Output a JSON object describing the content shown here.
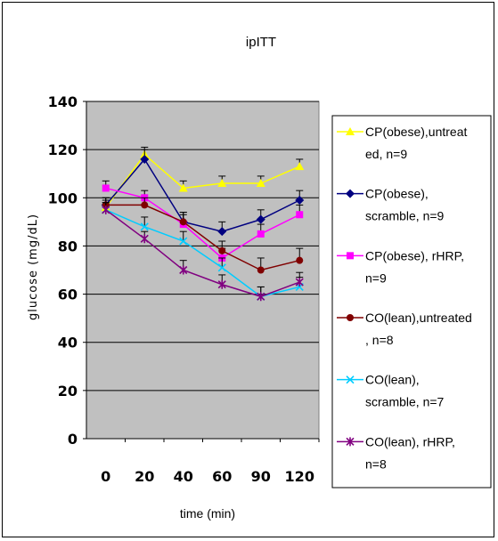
{
  "chart_data": {
    "type": "line",
    "title": "ipITT",
    "xlabel": "time (min)",
    "ylabel": "glucose (mg/dL)",
    "categories": [
      "0",
      "20",
      "40",
      "60",
      "90",
      "120"
    ],
    "ylim": [
      0,
      140
    ],
    "yticks": [
      0,
      20,
      40,
      60,
      80,
      100,
      120,
      140
    ],
    "grid": true,
    "legend_position": "right",
    "plot_background": "#c0c0c0",
    "series": [
      {
        "name": "CP(obese),untreated, n=9",
        "legend_lines": [
          "CP(obese),untreat",
          "ed, n=9"
        ],
        "values": [
          96,
          118,
          104,
          106,
          106,
          113
        ],
        "errors": [
          3,
          3,
          3,
          3,
          3,
          3
        ],
        "color": "#ffff00",
        "marker": "triangle"
      },
      {
        "name": "CP(obese), scramble, n=9",
        "legend_lines": [
          "CP(obese),",
          "scramble, n=9"
        ],
        "values": [
          97,
          116,
          90,
          86,
          91,
          99
        ],
        "errors": [
          3,
          4,
          4,
          4,
          4,
          4
        ],
        "color": "#000080",
        "marker": "diamond"
      },
      {
        "name": "CP(obese), rHRP, n=9",
        "legend_lines": [
          "CP(obese), rHRP,",
          "n=9"
        ],
        "values": [
          104,
          100,
          89,
          75,
          85,
          93
        ],
        "errors": [
          3,
          3,
          4,
          4,
          4,
          4
        ],
        "color": "#ff00ff",
        "marker": "square"
      },
      {
        "name": "CO(lean),untreated, n=8",
        "legend_lines": [
          "CO(lean),untreated",
          ", n=8"
        ],
        "values": [
          97,
          97,
          90,
          78,
          70,
          74
        ],
        "errors": [
          3,
          3,
          4,
          4,
          5,
          5
        ],
        "color": "#800000",
        "marker": "circle"
      },
      {
        "name": "CO(lean), scramble, n=7",
        "legend_lines": [
          "CO(lean),",
          "scramble, n=7"
        ],
        "values": [
          95,
          88,
          82,
          71,
          59,
          63
        ],
        "errors": [
          3,
          4,
          4,
          4,
          4,
          4
        ],
        "color": "#00ccff",
        "marker": "x"
      },
      {
        "name": "CO(lean), rHRP, n=8",
        "legend_lines": [
          "CO(lean), rHRP,",
          "n=8"
        ],
        "values": [
          95,
          83,
          70,
          64,
          59,
          65
        ],
        "errors": [
          3,
          3,
          4,
          4,
          4,
          4
        ],
        "color": "#800080",
        "marker": "star"
      }
    ]
  }
}
